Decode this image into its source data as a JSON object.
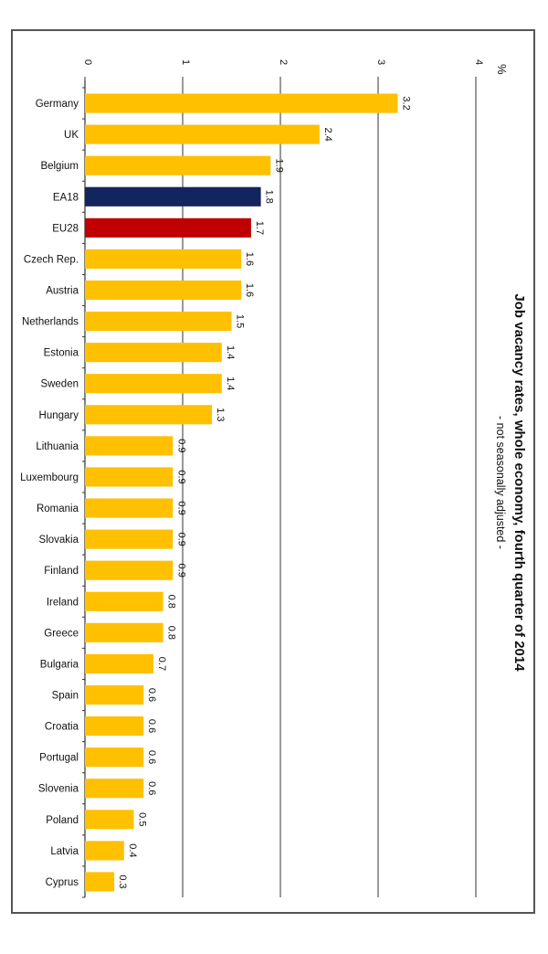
{
  "chart_data": {
    "type": "bar",
    "orientation": "horizontal",
    "title": "Job vacancy rates, whole economy, fourth quarter of 2014",
    "subtitle": "- not seasonally adjusted -",
    "unit": "%",
    "categories": [
      "Germany",
      "UK",
      "Belgium",
      "EA18",
      "EU28",
      "Czech Rep.",
      "Austria",
      "Netherlands",
      "Estonia",
      "Sweden",
      "Hungary",
      "Lithuania",
      "Luxembourg",
      "Romania",
      "Slovakia",
      "Finland",
      "Ireland",
      "Greece",
      "Bulgaria",
      "Spain",
      "Croatia",
      "Portugal",
      "Slovenia",
      "Poland",
      "Latvia",
      "Cyprus"
    ],
    "values": [
      3.2,
      2.4,
      1.9,
      1.8,
      1.7,
      1.6,
      1.6,
      1.5,
      1.4,
      1.4,
      1.3,
      0.9,
      0.9,
      0.9,
      0.9,
      0.9,
      0.8,
      0.8,
      0.7,
      0.6,
      0.6,
      0.6,
      0.6,
      0.5,
      0.4,
      0.3
    ],
    "value_labels": [
      "3.2",
      "2.4",
      "1.9",
      "1.8",
      "1.7",
      "1.6",
      "1.6",
      "1.5",
      "1.4",
      "1.4",
      "1.3",
      "0.9",
      "0.9",
      "0.9",
      "0.9",
      "0.9",
      "0.8",
      "0.8",
      "0.7",
      "0.6",
      "0.6",
      "0.6",
      "0.6",
      "0.5",
      "0.4",
      "0.3"
    ],
    "xlim": [
      0,
      4
    ],
    "ticks": [
      0,
      1,
      2,
      3,
      4
    ],
    "tick_labels": [
      "0",
      "1",
      "2",
      "3",
      "4"
    ],
    "grid": true,
    "legend": "none",
    "colors": {
      "default": "#FFC000",
      "EA18": "#13245E",
      "EU28": "#C00000",
      "grid": "#333333",
      "axis": "#333333"
    }
  }
}
